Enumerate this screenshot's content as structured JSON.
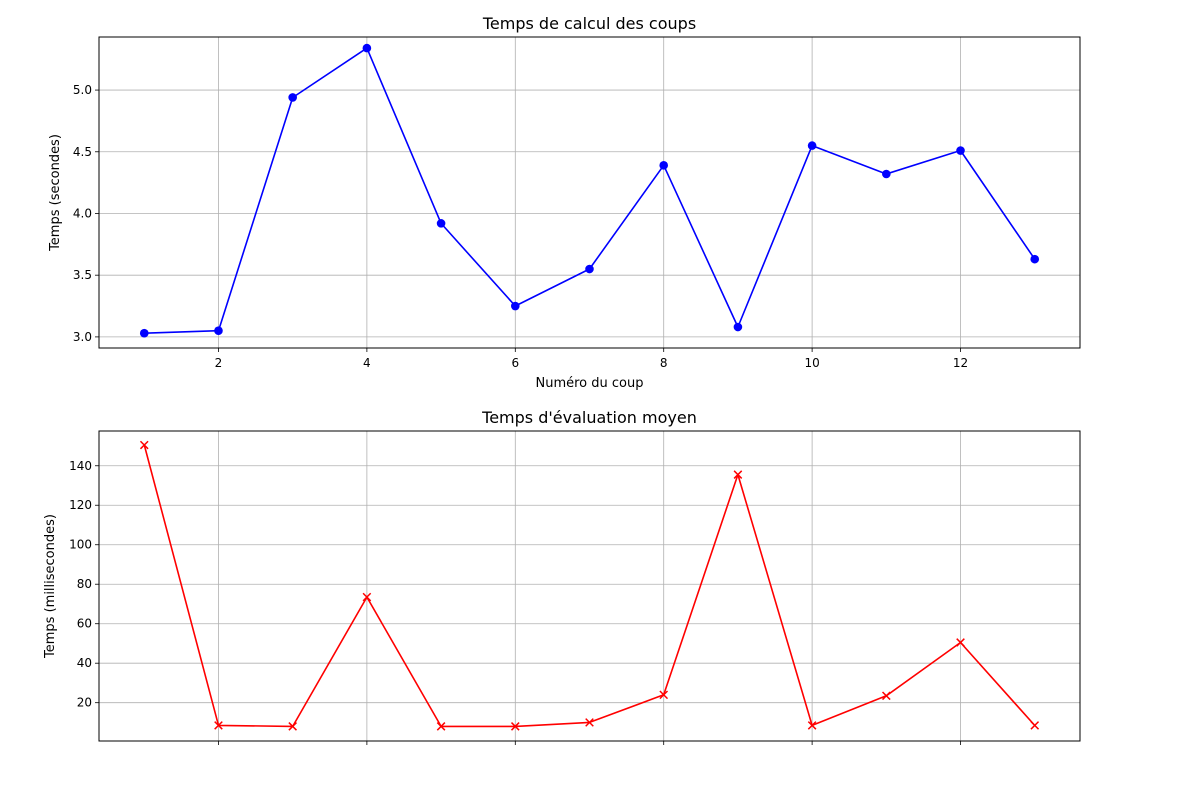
{
  "chart_data": [
    {
      "type": "line",
      "title": "Temps de calcul des coups",
      "xlabel": "Numéro du coup",
      "ylabel": "Temps (secondes)",
      "xlim": [
        0.39,
        13.61
      ],
      "ylim": [
        2.91,
        5.43
      ],
      "grid": true,
      "legend": "none",
      "xticks": [
        2,
        4,
        6,
        8,
        10,
        12
      ],
      "xtick_labels": [
        "2",
        "4",
        "6",
        "8",
        "10",
        "12"
      ],
      "yticks": [
        3.0,
        3.5,
        4.0,
        4.5,
        5.0
      ],
      "ytick_labels": [
        "3.0",
        "3.5",
        "4.0",
        "4.5",
        "5.0"
      ],
      "series": [
        {
          "color": "#0000ff",
          "marker": "circle",
          "x": [
            1,
            2,
            3,
            4,
            5,
            6,
            7,
            8,
            9,
            10,
            11,
            12,
            13
          ],
          "y": [
            3.03,
            3.05,
            4.94,
            5.34,
            3.92,
            3.25,
            3.55,
            4.39,
            3.08,
            4.55,
            4.32,
            4.51,
            3.63
          ]
        }
      ]
    },
    {
      "type": "line",
      "title": "Temps d'évaluation moyen",
      "xlabel": "",
      "ylabel": "Temps (millisecondes)",
      "xlim": [
        0.39,
        13.61
      ],
      "ylim": [
        0.6,
        157.6
      ],
      "grid": true,
      "legend": "none",
      "xticks": [
        2,
        4,
        6,
        8,
        10,
        12
      ],
      "xtick_labels": [],
      "yticks": [
        20,
        40,
        60,
        80,
        100,
        120,
        140
      ],
      "ytick_labels": [
        "20",
        "40",
        "60",
        "80",
        "100",
        "120",
        "140"
      ],
      "series": [
        {
          "color": "#ff0000",
          "marker": "x",
          "x": [
            1,
            2,
            3,
            4,
            5,
            6,
            7,
            8,
            9,
            10,
            11,
            12,
            13
          ],
          "y": [
            150.5,
            8.5,
            8.0,
            73.5,
            8.0,
            8.0,
            10.0,
            24.0,
            135.5,
            8.5,
            23.5,
            50.5,
            8.5
          ]
        }
      ]
    }
  ]
}
